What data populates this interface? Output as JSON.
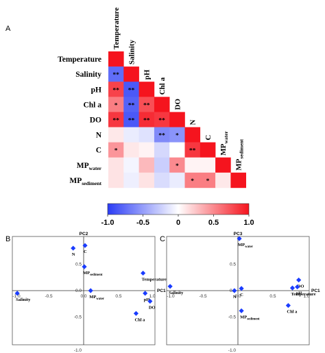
{
  "chart_data": [
    {
      "type": "heatmap",
      "panel_label": "A",
      "variables": [
        {
          "name": "Temperature",
          "sub": ""
        },
        {
          "name": "Salinity",
          "sub": ""
        },
        {
          "name": "pH",
          "sub": ""
        },
        {
          "name": "Chl a",
          "sub": ""
        },
        {
          "name": "DO",
          "sub": ""
        },
        {
          "name": "N",
          "sub": ""
        },
        {
          "name": "C",
          "sub": ""
        },
        {
          "name": "MP",
          "sub": "water"
        },
        {
          "name": "MP",
          "sub": "sediment"
        }
      ],
      "layout": "lower-triangle",
      "rows": [
        [
          1.0
        ],
        [
          -0.75,
          1.0
        ],
        [
          0.8,
          -0.85,
          1.0
        ],
        [
          0.55,
          -0.8,
          0.75,
          1.0
        ],
        [
          0.85,
          -0.85,
          0.9,
          0.85,
          1.0
        ],
        [
          0.1,
          -0.1,
          -0.15,
          -0.6,
          -0.55,
          1.0
        ],
        [
          0.45,
          0.1,
          0.05,
          -0.2,
          0.0,
          0.85,
          1.0
        ],
        [
          0.12,
          -0.05,
          0.3,
          -0.25,
          0.5,
          0.05,
          0.05,
          1.0
        ],
        [
          0.12,
          -0.08,
          0.12,
          -0.18,
          -0.1,
          0.55,
          0.55,
          0.1,
          1.0
        ]
      ],
      "significance": [
        [
          ""
        ],
        [
          "**",
          ""
        ],
        [
          "**",
          "**",
          ""
        ],
        [
          "*",
          "**",
          "**",
          ""
        ],
        [
          "**",
          "**",
          "**",
          "**",
          ""
        ],
        [
          "",
          "",
          "",
          "**",
          "*",
          ""
        ],
        [
          "*",
          "",
          "",
          "",
          "",
          "**",
          ""
        ],
        [
          "",
          "",
          "",
          "",
          "*",
          "",
          "",
          ""
        ],
        [
          "",
          "",
          "",
          "",
          "",
          "*",
          "*",
          "",
          ""
        ]
      ],
      "colorbar": {
        "range": [
          -1.0,
          1.0
        ],
        "ticks": [
          "-1.0",
          "-0.5",
          "0",
          "0.5",
          "1.0"
        ],
        "colors": [
          "#2b3cf5",
          "#ffffff",
          "#f5141e"
        ]
      }
    },
    {
      "type": "scatter",
      "panel_label": "B",
      "xlabel": "PC1",
      "ylabel": "PC2",
      "xlim": [
        -1.0,
        1.0
      ],
      "ylim": [
        -1.0,
        1.0
      ],
      "x_ticks": [
        "-1.0",
        "-0.5",
        "0.0",
        "0.5",
        "1.0"
      ],
      "y_ticks": [
        "-1.0",
        "-0.5",
        "0.0",
        "0.5"
      ],
      "marker_color": "#1a3cff",
      "points": [
        {
          "name": "Salinity",
          "sub": "",
          "x": -0.95,
          "y": -0.05
        },
        {
          "name": "N",
          "sub": "",
          "x": -0.15,
          "y": 0.8
        },
        {
          "name": "C",
          "sub": "",
          "x": 0.02,
          "y": 0.85
        },
        {
          "name": "MP",
          "sub": "sediment",
          "x": 0.01,
          "y": 0.45
        },
        {
          "name": "MP",
          "sub": "water",
          "x": 0.1,
          "y": 0.0
        },
        {
          "name": "Temperature",
          "sub": "",
          "x": 0.85,
          "y": 0.33
        },
        {
          "name": "pH",
          "sub": "",
          "x": 0.88,
          "y": -0.05
        },
        {
          "name": "DO",
          "sub": "",
          "x": 0.95,
          "y": -0.2
        },
        {
          "name": "Chl a",
          "sub": "",
          "x": 0.75,
          "y": -0.43
        }
      ]
    },
    {
      "type": "scatter",
      "panel_label": "C",
      "xlabel": "PC1",
      "ylabel": "PC3",
      "xlim": [
        -1.0,
        1.0
      ],
      "ylim": [
        -1.0,
        1.0
      ],
      "x_ticks": [
        "-1.0",
        "-0.5",
        "0.0",
        "0.5",
        "1.0"
      ],
      "y_ticks": [
        "-1.0",
        "-0.5",
        "0.0",
        "0.5"
      ],
      "marker_color": "#1a3cff",
      "points": [
        {
          "name": "MP",
          "sub": "water",
          "x": 0.02,
          "y": 0.98
        },
        {
          "name": "DO",
          "sub": "",
          "x": 0.87,
          "y": 0.2
        },
        {
          "name": "pH",
          "sub": "",
          "x": 0.85,
          "y": 0.07
        },
        {
          "name": "Temperature",
          "sub": "",
          "x": 0.78,
          "y": 0.05
        },
        {
          "name": "Salinity",
          "sub": "",
          "x": -0.97,
          "y": 0.08
        },
        {
          "name": "N",
          "sub": "",
          "x": -0.05,
          "y": 0.0
        },
        {
          "name": "C",
          "sub": "",
          "x": 0.05,
          "y": 0.04
        },
        {
          "name": "Chl a",
          "sub": "",
          "x": 0.72,
          "y": -0.28
        },
        {
          "name": "MP",
          "sub": "sediment",
          "x": 0.05,
          "y": -0.38
        }
      ]
    }
  ]
}
